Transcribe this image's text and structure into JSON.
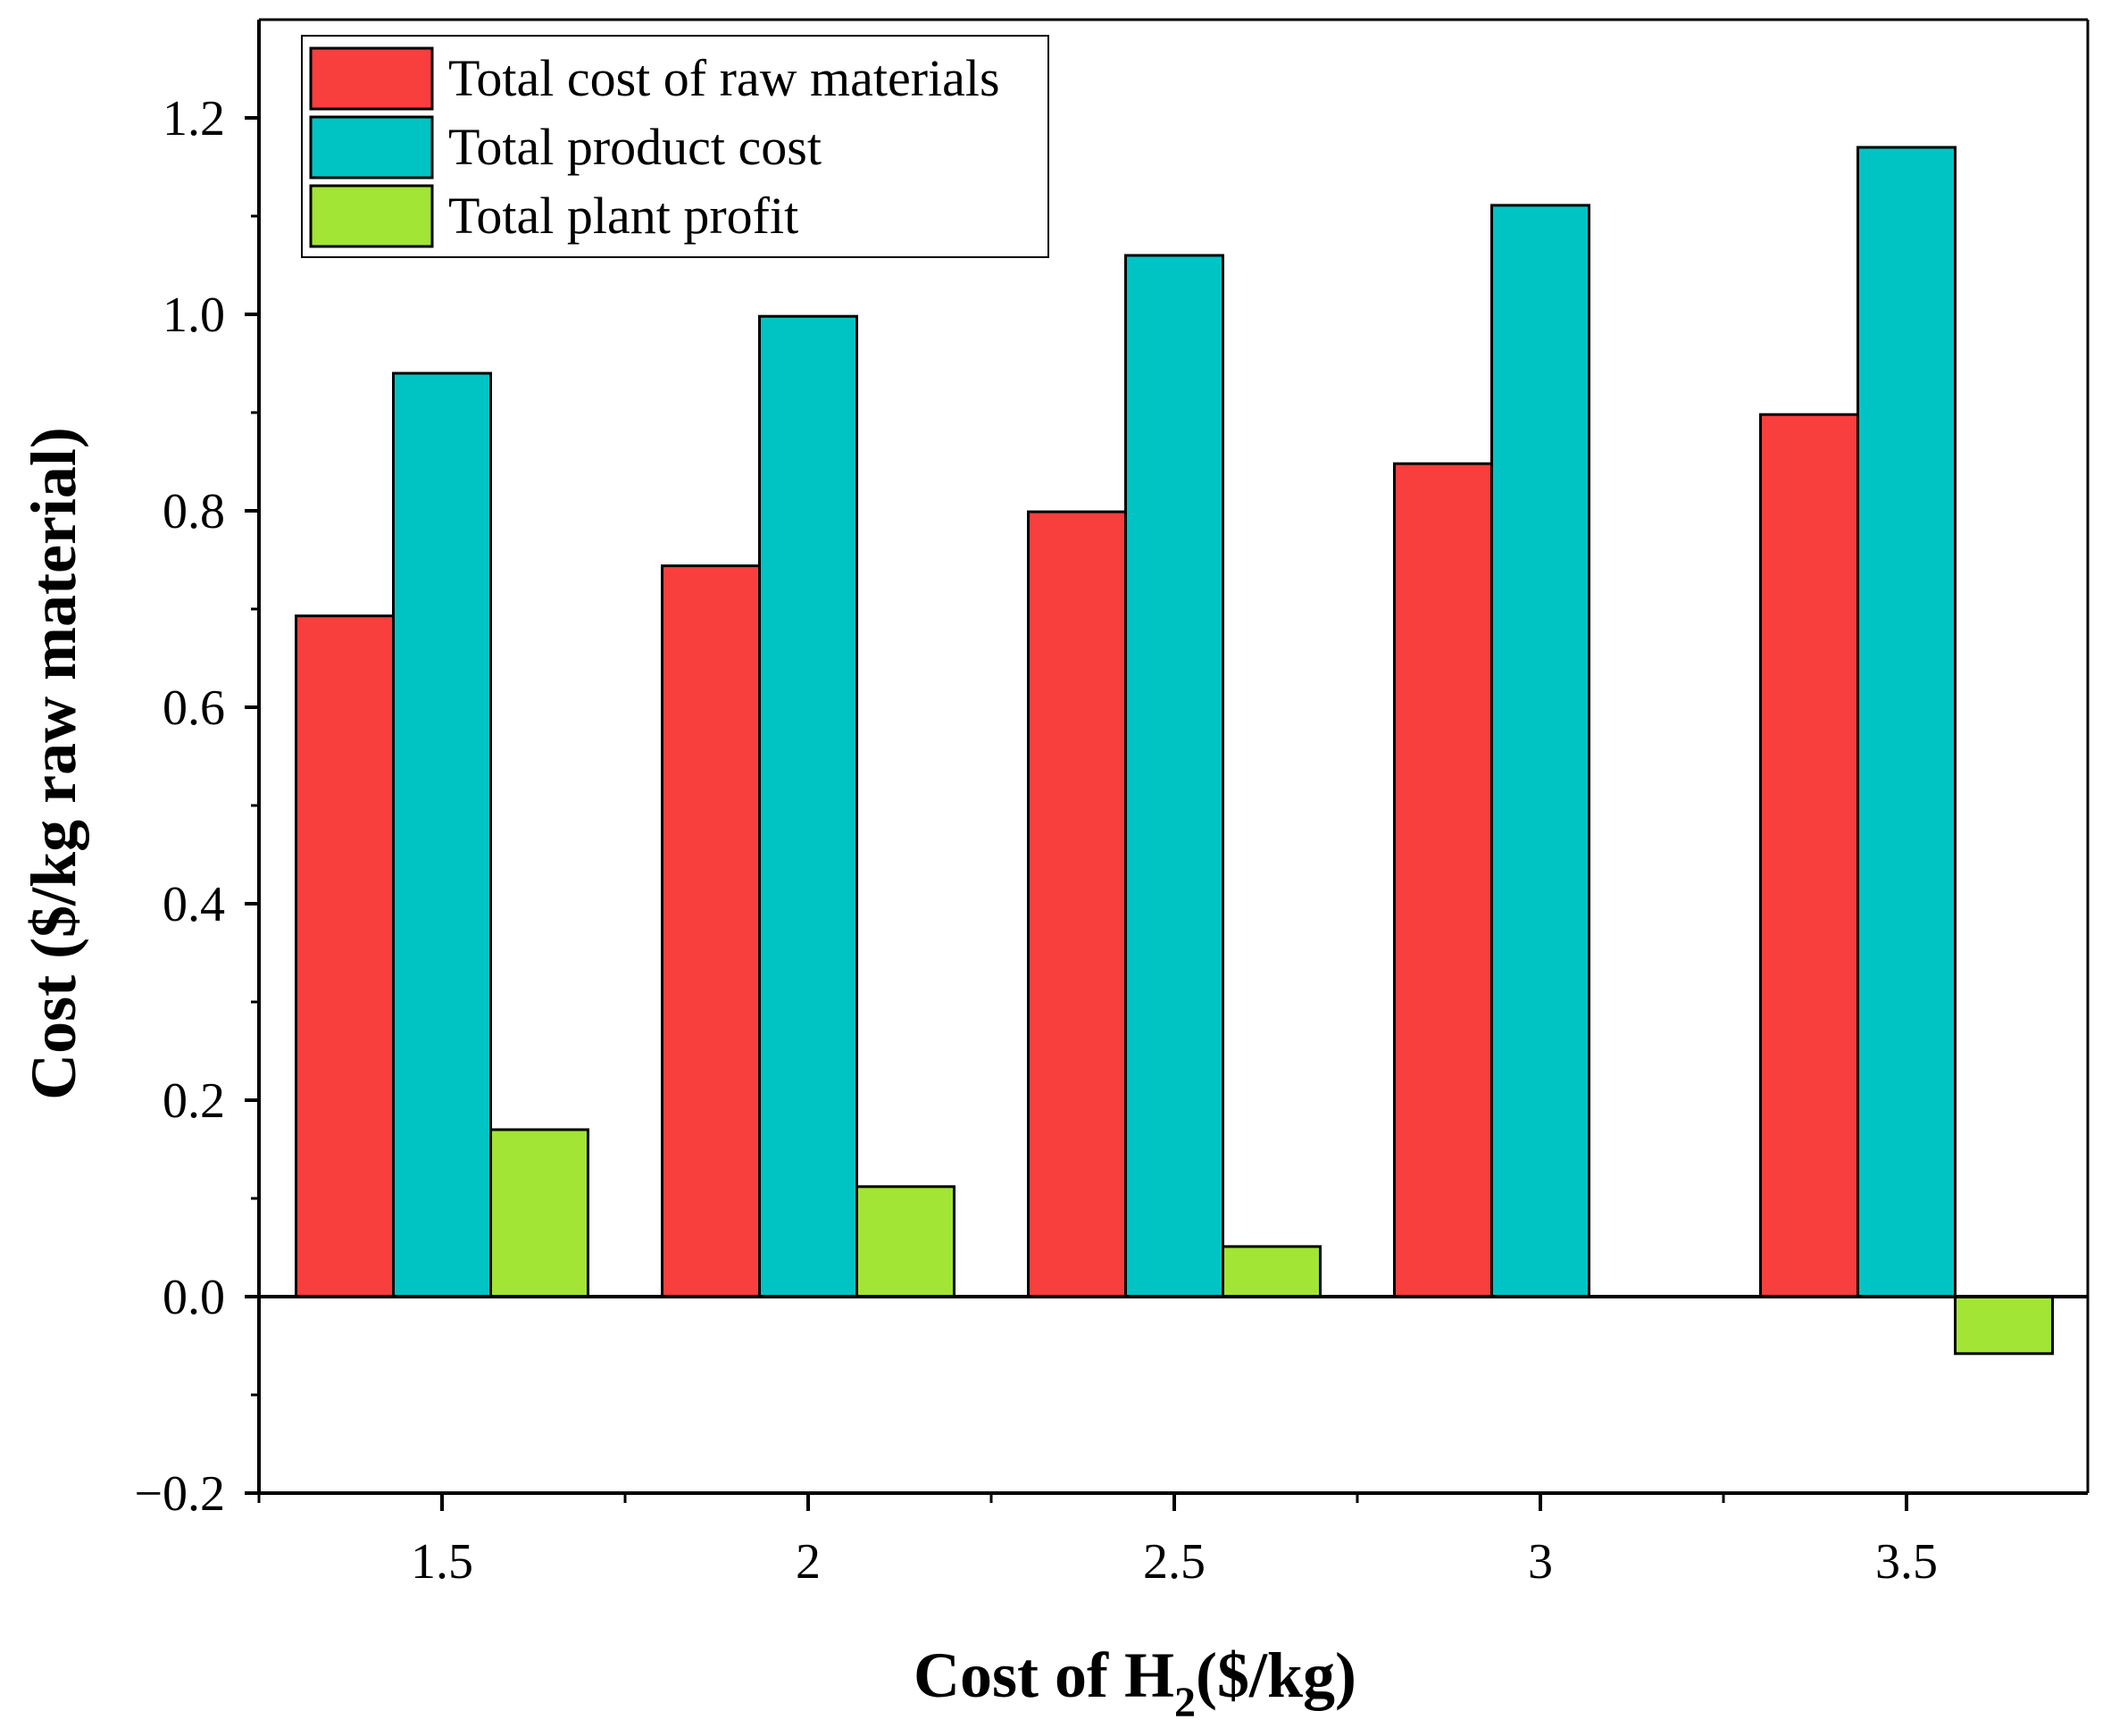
{
  "chart_data": {
    "type": "bar",
    "title": "",
    "categories": [
      "1.5",
      "2",
      "2.5",
      "3",
      "3.5"
    ],
    "series": [
      {
        "name": "Total cost of raw materials",
        "color": "#f93e3e",
        "values": [
          0.693,
          0.744,
          0.799,
          0.848,
          0.898
        ]
      },
      {
        "name": "Total product cost",
        "color": "#00c4c4",
        "values": [
          0.94,
          0.998,
          1.06,
          1.111,
          1.17
        ]
      },
      {
        "name": "Total plant profit",
        "color": "#a2e534",
        "values": [
          0.17,
          0.112,
          0.051,
          0.0,
          -0.058
        ]
      }
    ],
    "xlabel": {
      "prefix": "Cost of H",
      "subscript": "2",
      "suffix": "($/kg)"
    },
    "ylabel": "Cost ($/kg raw material)",
    "ylim": [
      -0.2,
      1.3
    ],
    "yticks": [
      -0.2,
      0.0,
      0.2,
      0.4,
      0.6,
      0.8,
      1.0,
      1.2
    ],
    "ytick_labels": [
      "−0.2",
      "0.0",
      "0.2",
      "0.4",
      "0.6",
      "0.8",
      "1.0",
      "1.2"
    ],
    "legend_position": "top-left",
    "grid": false
  }
}
